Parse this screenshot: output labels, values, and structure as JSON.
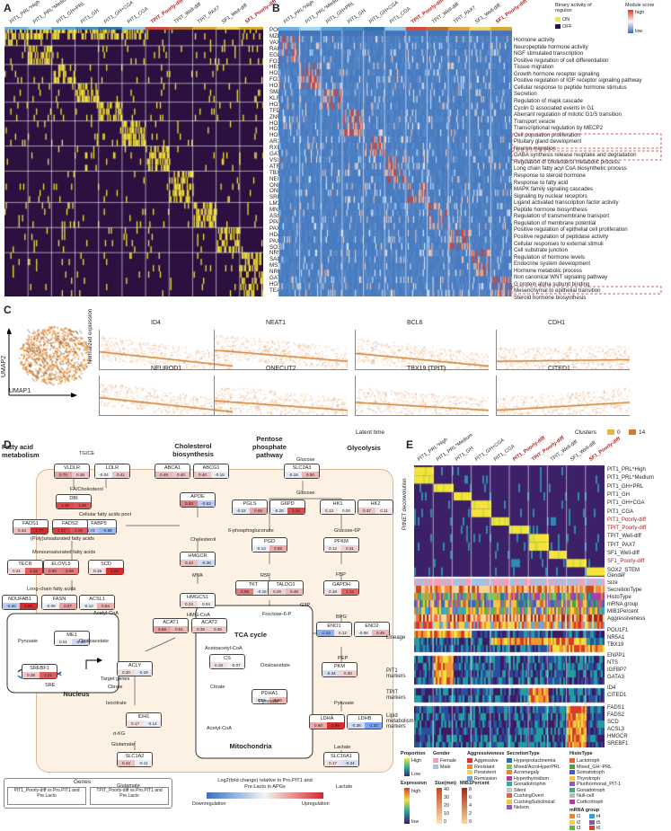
{
  "panels": {
    "a": "A",
    "b": "B",
    "c": "C",
    "d": "D",
    "e": "E"
  },
  "panel_a": {
    "columns": [
      "PIT1_PRL^High",
      "PIT1_PRL^Medium",
      "PIT1_GH+PRL",
      "PIT1_GH",
      "PIT1_GH+CGA",
      "PIT1_CGA",
      "TPIT_Poorly-diff",
      "TPIT_Well-diff",
      "TPIT_PAX7",
      "SF1_Well-diff",
      "SF1_Poorly-diff"
    ],
    "genes": [
      "POU1F1(PIT1)",
      "MZF1",
      "VAX2",
      "RARA",
      "EGR3",
      "FOXG1",
      "HES6",
      "HOXA5",
      "FOXO1",
      "HOXB4",
      "SMAD1",
      "KLF15",
      "HOXB6",
      "TFDP2",
      "ZNF787",
      "HOXB7",
      "HOXB8",
      "HOXB9",
      "ARX",
      "RXRG",
      "GATA2",
      "VSX2",
      "ATF6B",
      "TBX19(TPIT)",
      "NEUROD1",
      "ONECUT2",
      "ONECUT1",
      "SREBF1",
      "LMX1A",
      "MNX1",
      "ASCL1",
      "PPARGC1A",
      "PAX7",
      "HDAC2",
      "PAX6",
      "SOX2",
      "NR5A1(SF1)",
      "SALL2",
      "MSX1",
      "NR0B1",
      "GATA3",
      "HOXB2",
      "TEAD3"
    ]
  },
  "panel_b": {
    "legend_binary": {
      "title": "Binary activity of regulon",
      "on": "ON",
      "off": "OFF"
    },
    "legend_module": {
      "title": "Module score",
      "high": "high",
      "low": "low"
    },
    "terms": [
      "Hormone activity",
      "Neuropeptide hormone activity",
      "NGF stimulated transcription",
      "Positive regulation of cell differentiation",
      "Tissue migration",
      "Growth hormone receptor signaling",
      "Positive regulation of IGF receptor signaling pathway",
      "Cellular response to peptide hormone stimulus",
      "Secretion",
      "Regulation of mapk cascade",
      "Cyclin D associated events in G1",
      "Aberrant regulation of mitotic G1/S transition",
      "Transport vesicle",
      "Transcriptional regulation by MECP2",
      "Cell population proliferation",
      "Pituitary gland development",
      "Neuron migration",
      "GABA synthesis release reuptake and degradation",
      "Regulation of cholesterol metabolic process",
      "Long chain fatty acyl CoA biosynthetic process",
      "Response to steroid hormone",
      "Response to fatty acid",
      "MAPK family signaling cascades",
      "Signaling by nuclear receptors",
      "Ligand activated transcription factor activity",
      "Peptide hormone biosynthesis",
      "Regulation of transmembrane transport",
      "Regulation of membrane potential",
      "Positive regulation of epithelial cell proliferation",
      "Positive regulation of peptidase activity",
      "Cellular responses to external stimuli",
      "Cell substrate junction",
      "Regulation of hormone levels",
      "Endocrine system development",
      "Hormone metabolic process",
      "Non canonical WNT signaling pathway",
      "G protein alpha subunit binding",
      "Mesenchymal to epithelial transition",
      "Steroid hormone biosynthesis"
    ]
  },
  "panel_c": {
    "umap_x": "UMAP1",
    "umap_y": "UMAP2",
    "ylabel": "Normalized expression",
    "xlabel": "Latent time",
    "genes": [
      "ID4",
      "NEAT1",
      "BCL6",
      "CDH1",
      "NEUROD1",
      "ONECUT2",
      "TBX19 (TPIT)",
      "CITED1"
    ],
    "clusters_label": "Clusters",
    "cluster_low": "0",
    "cluster_high": "14"
  },
  "panel_d": {
    "headers": {
      "fatty": "Fatty acid metabolism",
      "chol": "Cholesterol biosynthesis",
      "ppp": "Pentose phosphate pathway",
      "glyco": "Glycolysis",
      "tca": "TCA cycle",
      "mito": "Mitochondria",
      "nucleus": "Nucleus"
    },
    "enzymes": [
      {
        "id": "VLDLR",
        "v": [
          "0.70",
          "0.38"
        ]
      },
      {
        "id": "LDLR",
        "v": [
          "-0.04",
          "0.41"
        ]
      },
      {
        "id": "DBI",
        "v": [
          "1.36",
          "1.28"
        ]
      },
      {
        "id": "FABP5",
        "v": [
          "-0.74",
          "-0.98"
        ]
      },
      {
        "id": "FADS1",
        "v": [
          "0.44",
          "1.77"
        ]
      },
      {
        "id": "FADS2",
        "v": [
          "1.47",
          "1.26"
        ]
      },
      {
        "id": "TECR",
        "v": [
          "0.21",
          "1.22"
        ]
      },
      {
        "id": "ELOVL5",
        "v": [
          "0.90",
          "0.98"
        ]
      },
      {
        "id": "SCD",
        "v": [
          "0.19",
          "1.66"
        ]
      },
      {
        "id": "NDUFAB1",
        "v": [
          "-0.65",
          "1.68"
        ]
      },
      {
        "id": "FASN",
        "v": [
          "-0.09",
          "0.67"
        ]
      },
      {
        "id": "ACSL1",
        "v": [
          "-0.12",
          "0.54"
        ]
      },
      {
        "id": "ME1",
        "v": [
          "0.01",
          "-0.40"
        ]
      },
      {
        "id": "ABCA1",
        "v": [
          "0.49",
          "0.40"
        ]
      },
      {
        "id": "ABCG1",
        "v": [
          "0.40",
          "-0.15"
        ]
      },
      {
        "id": "APOE",
        "v": [
          "0.93",
          "-0.63"
        ]
      },
      {
        "id": "HMGCR",
        "v": [
          "0.43",
          "-0.38"
        ]
      },
      {
        "id": "HMGCS1",
        "v": [
          "0.24",
          "0.04"
        ]
      },
      {
        "id": "ACAT1",
        "v": [
          "0.69",
          "0.51"
        ]
      },
      {
        "id": "ACAT2",
        "v": [
          "0.35",
          "0.35"
        ]
      },
      {
        "id": "ACLY",
        "v": [
          "0.20",
          "-0.19"
        ]
      },
      {
        "id": "SLC2A3",
        "v": [
          "-0.18",
          "0.50"
        ]
      },
      {
        "id": "PGLS",
        "v": [
          "-0.22",
          "0.65"
        ]
      },
      {
        "id": "G6PD",
        "v": [
          "-0.20",
          "1.34"
        ]
      },
      {
        "id": "HK1",
        "v": [
          "0.13",
          "0.00"
        ]
      },
      {
        "id": "HK2",
        "v": [
          "0.37",
          "0.11"
        ]
      },
      {
        "id": "PGD",
        "v": [
          "-0.13",
          "0.59"
        ]
      },
      {
        "id": "PFKM",
        "v": [
          "0.12",
          "0.31"
        ]
      },
      {
        "id": "TKT",
        "v": [
          "0.98",
          "-0.16"
        ]
      },
      {
        "id": "TALDO1",
        "v": [
          "0.29",
          "0.46"
        ]
      },
      {
        "id": "GAPDH",
        "v": [
          "0.18",
          "1.12"
        ]
      },
      {
        "id": "ENO1",
        "v": [
          "-1.13",
          "0.12"
        ]
      },
      {
        "id": "ENO2",
        "v": [
          "-0.08",
          "0.49"
        ]
      },
      {
        "id": "PKM",
        "v": [
          "-0.34",
          "0.30"
        ]
      },
      {
        "id": "CS",
        "v": [
          "0.18",
          "-0.07"
        ]
      },
      {
        "id": "PDHA1",
        "v": [
          "-0.15",
          "0.50"
        ]
      },
      {
        "id": "IDH1",
        "v": [
          "0.17",
          "-0.14"
        ]
      },
      {
        "id": "LDHA",
        "v": [
          "0.60",
          "1.86"
        ]
      },
      {
        "id": "LDHB",
        "v": [
          "-0.38",
          "-1.32"
        ]
      },
      {
        "id": "SLC16A1",
        "v": [
          "0.17",
          "-0.34"
        ]
      },
      {
        "id": "SLC1A2",
        "v": [
          "0.42",
          "-0.11"
        ]
      },
      {
        "id": "SREBF1",
        "v": [
          "0.38",
          "1.21"
        ]
      }
    ],
    "metabolites": {
      "tgce": "TG/CE",
      "fachol": "FA/Cholesterol",
      "pool": "Cellular fatty acids pool",
      "pufa": "(Poly)unsaturated fatty acids",
      "mufa": "Monounsaturated fatty acids",
      "lcfa": "Long-chain fatty acids",
      "acoa": "Acetyl-CoA",
      "oaa": "Oxaloacetate",
      "pyr": "Pyruvate",
      "cit": "Citrate",
      "iso": "Isocitrate",
      "akg": "α-KG",
      "glu": "Glutamate",
      "glu2": "Glutamate",
      "chol": "Cholesterol",
      "mva": "MVA",
      "hmg": "HMG-CoA",
      "acac": "Acetoacetyl-CoA",
      "glc": "Glucose",
      "glc2": "Glucose",
      "pg6": "6-phosphogluconate",
      "g6p": "Glucose-6P",
      "r5p": "R5P",
      "fbp": "FBP",
      "f6p": "Fructose-6-P",
      "g3p": "G3P",
      "bpg": "BPG",
      "pep": "PEP",
      "pyr2": "Pyruvate",
      "lac": "Lactate",
      "lac2": "Lactate",
      "tca_cit": "Citrate",
      "tca_oaa": "Oxaloacetate",
      "tca_pyr": "Pyruvate",
      "tca_acoa": "Acetyl-CoA",
      "target": "Target genes",
      "sre": "SRE"
    },
    "genes_legend": {
      "title": "Genes",
      "left": "PIT1_Poorly-diff vs Pro.PIT1 and Pre.Lacto",
      "right": "TPIT_Poorly-diff vs Pro.PIT1 and Pre.Lacto"
    },
    "scale": {
      "title": "Log2(fold change) relative to Pro.PIT1 and Pre.Lacto in APGs",
      "down": "Downregulation",
      "up": "Upregulation"
    }
  },
  "panel_e": {
    "columns": [
      "PIT1_PRL^High",
      "PIT1_PRL^Medium",
      "PIT1_GH",
      "PIT1_GH+CGA",
      "PIT1_CGA",
      "PIT1_Poorly-diff",
      "TPIT_Poorly-diff",
      "TPIT_Well-diff",
      "SF1_Well-diff",
      "SF1_Poorly-diff"
    ],
    "deconv_label": "PitNET deconvolution",
    "deconv_rows": [
      "PIT1_PRL^High",
      "PIT1_PRL^Medium",
      "PIT1_GH+PRL",
      "PIT1_GH",
      "PIT1_GH+CGA",
      "PIT1_CGA",
      "PIT1_Poorly-diff",
      "TPIT_Poorly-diff",
      "TPIT_Well-diff",
      "TPIT_PAX7",
      "SF1_Well-diff",
      "SF1_Poorly-diff",
      "SOX2_STEM"
    ],
    "annot_rows": [
      "Gender",
      "Size",
      "SecretionType",
      "HistoType",
      "mRNA group",
      "MIB1Percent",
      "Aggressiveness"
    ],
    "lineage_label": "Lineage",
    "lineage_rows": [
      "POU1F1",
      "NR5A1",
      "TBX19"
    ],
    "pit1_label": "PIT1 markers",
    "pit1_rows": [
      "ENPP1",
      "NTS",
      "IGFBP7",
      "GATA3"
    ],
    "tpit_label": "TPIT markers",
    "tpit_rows": [
      "ID4",
      "CITED1"
    ],
    "lipid_label": "Lipid metabolism markers",
    "lipid_rows": [
      "FADS1",
      "FADS2",
      "SCD",
      "ACSL3",
      "HMGCR",
      "SREBF1"
    ],
    "legend": {
      "proportion": "Proportion",
      "high": "High",
      "low": "Low",
      "expression": "Expression",
      "exp_high": "high",
      "exp_low": "low",
      "gender": "Gender",
      "female": "Female",
      "male": "Male",
      "size": "Size(mm)",
      "size_ticks": [
        "40",
        "30",
        "20",
        "10",
        "0"
      ],
      "mib1": "MIB1Percent",
      "mib1_ticks": [
        "8",
        "6",
        "4",
        "2",
        "0"
      ],
      "aggressiveness": "Aggressiveness",
      "aggr_items": [
        "Aggressive",
        "Resistant",
        "Persistent",
        "Remission"
      ],
      "secretion": "SecretionType",
      "secretion_items": [
        "Hyperprolactinemia",
        "Mixed/AcroHyperPRL",
        "Acromegaly",
        "Hyperthyroidism",
        "Gonadotrophin",
        "Silent",
        "CushingOvert",
        "CushingSubclinical",
        "Nelson"
      ],
      "histo": "HistoType",
      "histo_items": [
        "Lactotroph",
        "Mixed_GH~PRL",
        "Somatotroph",
        "Thyrotroph",
        "Plurihormonal_PIT-1",
        "Gonadotroph",
        "Null-cell",
        "Corticotroph"
      ],
      "mrna": "mRNA group",
      "mrna_items": [
        "t1",
        "t2",
        "t3",
        "t4",
        "t5",
        "t6"
      ]
    }
  }
}
